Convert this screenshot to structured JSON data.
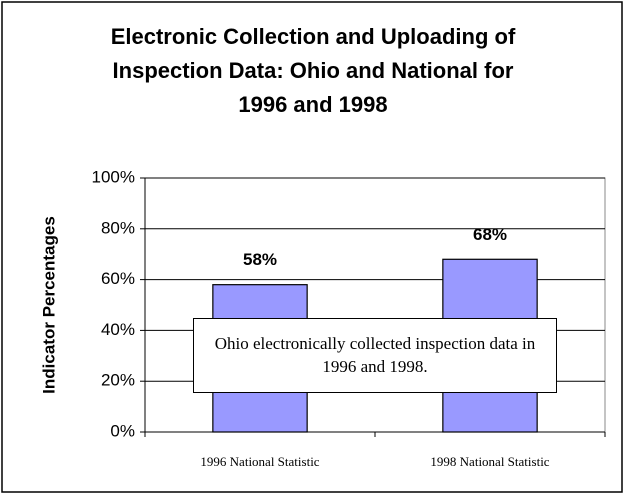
{
  "chart_data": {
    "type": "bar",
    "title_lines": [
      "Electronic Collection and Uploading of",
      "Inspection Data: Ohio and National for",
      "1996 and 1998"
    ],
    "y_label": "Indicator Percentages",
    "categories": [
      "1996 National Statistic",
      "1998 National Statistic"
    ],
    "values": [
      58,
      68
    ],
    "value_labels": [
      "58%",
      "68%"
    ],
    "color": "#9999ff",
    "ylim": [
      0,
      100
    ],
    "yticks": [
      {
        "value": 0,
        "label": "0%"
      },
      {
        "value": 20,
        "label": "20%"
      },
      {
        "value": 40,
        "label": "40%"
      },
      {
        "value": 60,
        "label": "60%"
      },
      {
        "value": 80,
        "label": "80%"
      },
      {
        "value": 100,
        "label": "100%"
      }
    ],
    "grid": true,
    "annotation": "Ohio electronically collected inspection data in 1996 and 1998."
  }
}
